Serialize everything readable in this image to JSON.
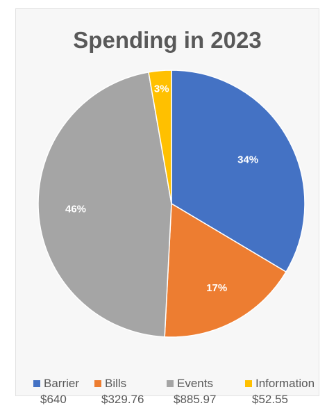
{
  "chart_data": {
    "type": "pie",
    "title": "Spending in 2023",
    "categories": [
      "Barrier",
      "Bills",
      "Events",
      "Information"
    ],
    "values": [
      640,
      329.76,
      885.97,
      52.55
    ],
    "value_labels": [
      "$640",
      "$329.76",
      "$885.97",
      "$52.55"
    ],
    "percent_labels": [
      "34%",
      "17%",
      "46%",
      "3%"
    ],
    "colors": [
      "#4472c4",
      "#ed7d31",
      "#a5a5a5",
      "#ffc000"
    ],
    "legend": "bottom"
  }
}
